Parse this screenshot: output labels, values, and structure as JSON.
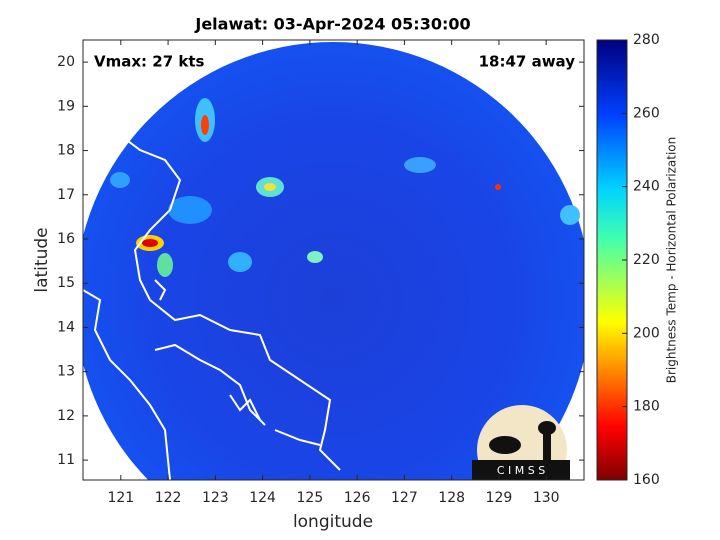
{
  "title": "Jelawat: 03-Apr-2024 05:30:00",
  "left_note": "Vmax: 27 kts",
  "right_note": "18:47 away",
  "xlabel": "longitude",
  "ylabel": "latitude",
  "xlim": [
    120.2,
    130.8
  ],
  "ylim": [
    10.55,
    20.5
  ],
  "xticks": [
    121,
    122,
    123,
    124,
    125,
    126,
    127,
    128,
    129,
    130
  ],
  "yticks": [
    11,
    12,
    13,
    14,
    15,
    16,
    17,
    18,
    19,
    20
  ],
  "colorbar": {
    "label": "Brightness Temp - Horizontal Polarization",
    "lim": [
      160,
      280
    ],
    "ticks": [
      160,
      180,
      200,
      220,
      240,
      260,
      280
    ]
  },
  "logo_text": "C I M S S"
}
